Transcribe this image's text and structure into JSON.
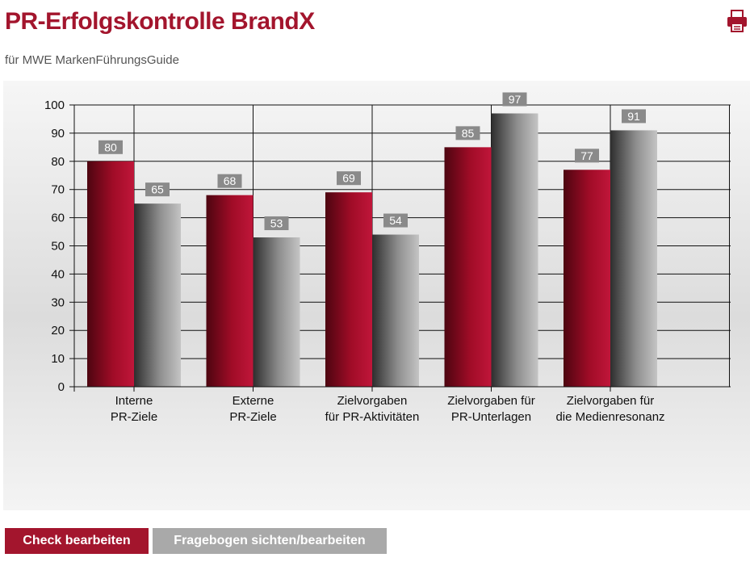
{
  "header": {
    "title": "PR-Erfolgskontrolle BrandX",
    "subtitle": "für MWE MarkenFührungsGuide",
    "print_icon": "printer-icon"
  },
  "colors": {
    "brand": "#a3152d",
    "series_red": "#b00f2c",
    "series_gray": "#a8a8a8",
    "button_gray": "#a9a9a9"
  },
  "chart_data": {
    "type": "bar",
    "categories": [
      [
        "Interne",
        "PR-Ziele"
      ],
      [
        "Externe",
        "PR-Ziele"
      ],
      [
        "Zielvorgaben",
        "für PR-Aktivitäten"
      ],
      [
        "Zielvorgaben für",
        "PR-Unterlagen"
      ],
      [
        "Zielvorgaben für",
        "die Medienresonanz"
      ]
    ],
    "series": [
      {
        "values": [
          80,
          68,
          69,
          85,
          77
        ]
      },
      {
        "values": [
          65,
          53,
          54,
          97,
          91
        ]
      }
    ],
    "ylim": [
      0,
      100
    ],
    "yticks": [
      0,
      10,
      20,
      30,
      40,
      50,
      60,
      70,
      80,
      90,
      100
    ],
    "grid": true,
    "data_labels": true
  },
  "actions": {
    "check_label": "Check bearbeiten",
    "fragebogen_label": "Fragebogen sichten/bearbeiten"
  }
}
